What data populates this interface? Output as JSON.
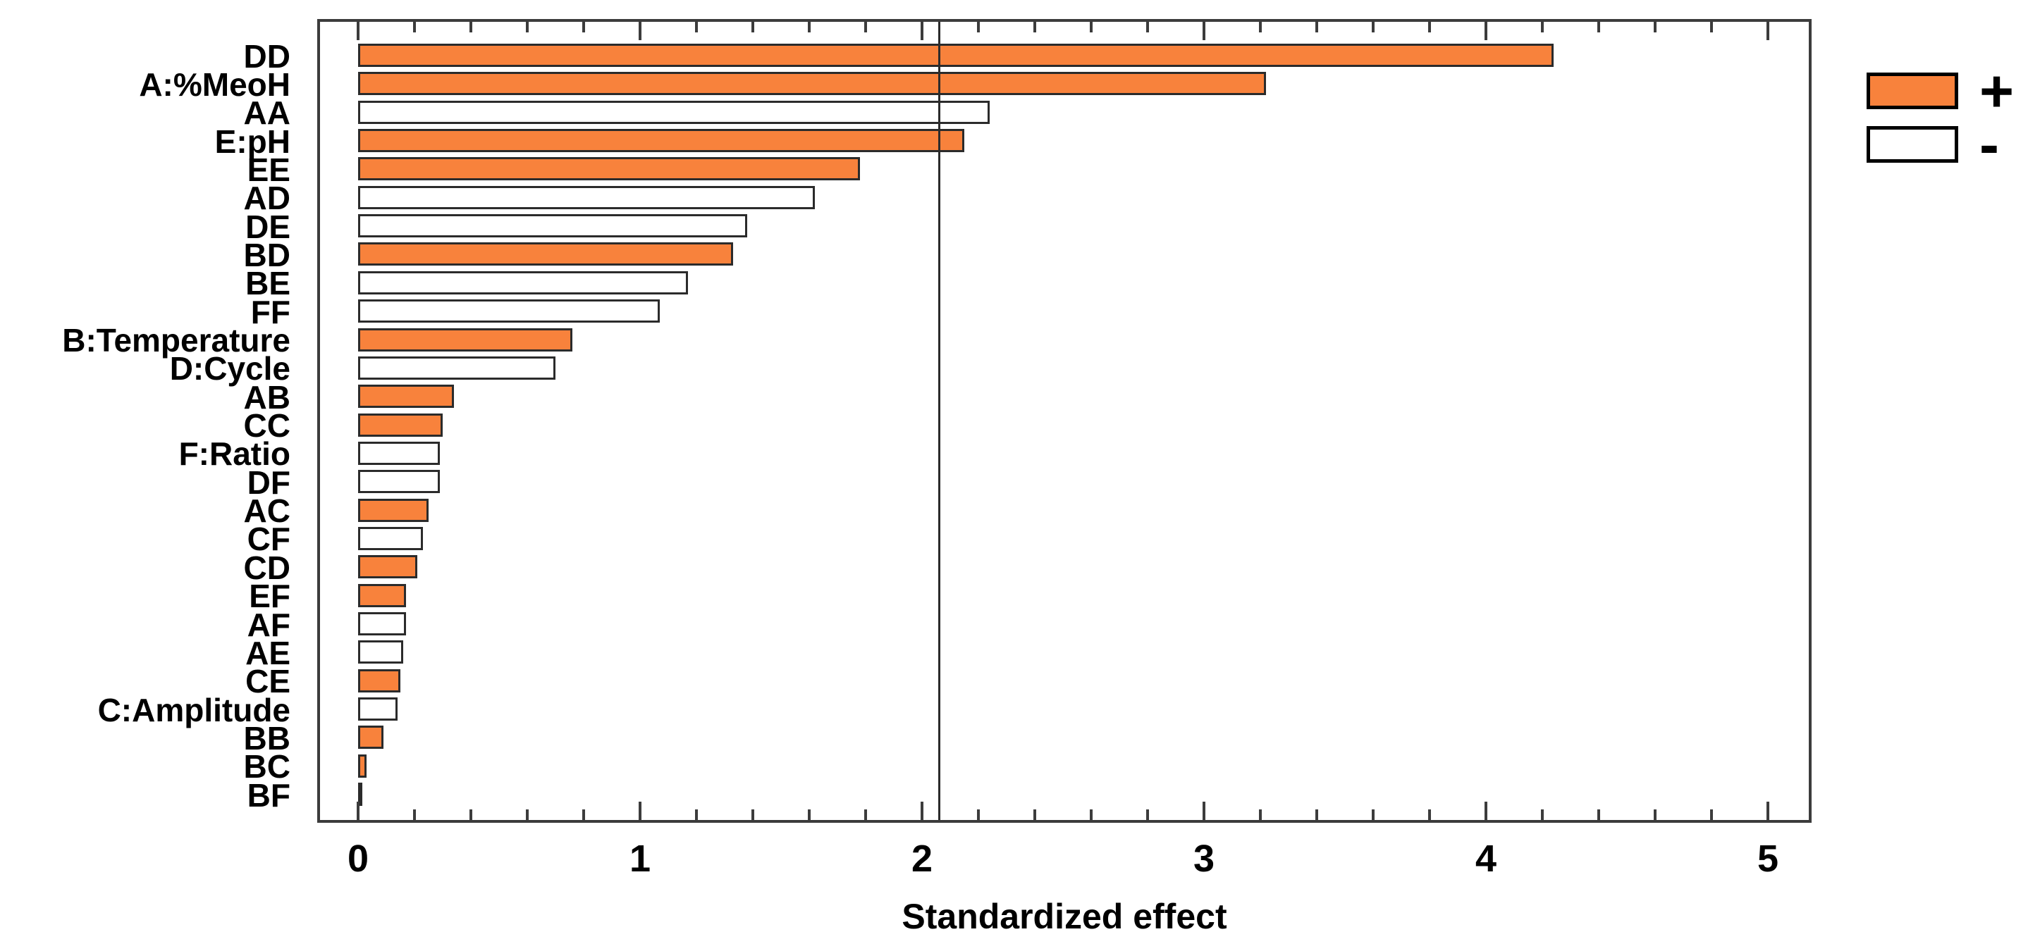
{
  "chart_data": {
    "type": "bar",
    "orientation": "horizontal",
    "title": "",
    "xlabel": "Standardized effect",
    "categories": [
      "DD",
      "A:%MeoH",
      "AA",
      "E:pH",
      "EE",
      "AD",
      "DE",
      "BD",
      "BE",
      "FF",
      "B:Temperature",
      "D:Cycle",
      "AB",
      "CC",
      "F:Ratio",
      "DF",
      "AC",
      "CF",
      "CD",
      "EF",
      "AF",
      "AE",
      "CE",
      "C:Amplitude",
      "BB",
      "BC",
      "BF"
    ],
    "values": [
      4.24,
      3.22,
      2.24,
      2.15,
      1.78,
      1.62,
      1.38,
      1.33,
      1.17,
      1.07,
      0.76,
      0.7,
      0.34,
      0.3,
      0.29,
      0.29,
      0.25,
      0.23,
      0.21,
      0.17,
      0.17,
      0.16,
      0.15,
      0.14,
      0.09,
      0.03,
      0.01
    ],
    "signs": [
      "+",
      "+",
      "-",
      "+",
      "+",
      "-",
      "-",
      "+",
      "-",
      "-",
      "+",
      "-",
      "+",
      "+",
      "-",
      "-",
      "+",
      "-",
      "+",
      "+",
      "-",
      "-",
      "+",
      "-",
      "+",
      "+",
      "+"
    ],
    "x_ticks": [
      0,
      1,
      2,
      3,
      4,
      5
    ],
    "x_minor_step": 0.2,
    "xlim": [
      -0.14,
      5.15
    ],
    "reference_line": 2.06,
    "grid": false,
    "legend": {
      "position": "top-right",
      "positive_label": "+",
      "negative_label": "-"
    },
    "colors": {
      "positive_fill": "#F8823C",
      "negative_fill": "#FFFFFF",
      "bar_border": "#2B2B2B",
      "axis": "#3C3C3C",
      "text": "#000000",
      "reference_line": "#2B2B2B"
    }
  }
}
